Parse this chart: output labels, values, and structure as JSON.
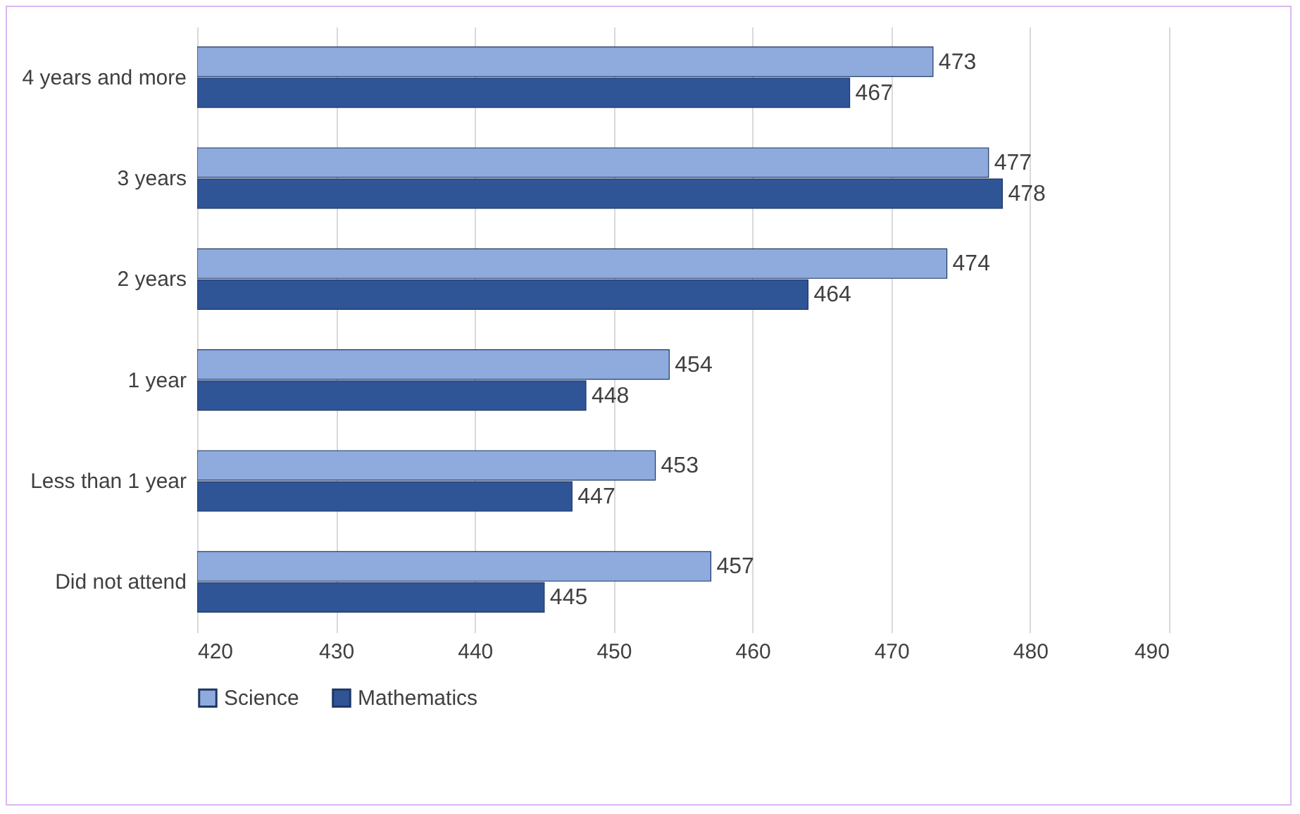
{
  "chart_data": {
    "type": "bar",
    "orientation": "horizontal",
    "categories": [
      "4 years and more",
      "3 years",
      "2 years",
      "1 year",
      "Less than 1 year",
      "Did not attend"
    ],
    "series": [
      {
        "name": "Science",
        "color": "#8faadc",
        "values": [
          473,
          477,
          474,
          454,
          453,
          457
        ]
      },
      {
        "name": "Mathematics",
        "color": "#2f5597",
        "values": [
          467,
          478,
          464,
          448,
          447,
          445
        ]
      }
    ],
    "xlim": [
      420,
      490
    ],
    "xticks": [
      420,
      430,
      440,
      450,
      460,
      470,
      480,
      490
    ],
    "grid": "x",
    "data_labels": true,
    "legend": "bottom"
  }
}
